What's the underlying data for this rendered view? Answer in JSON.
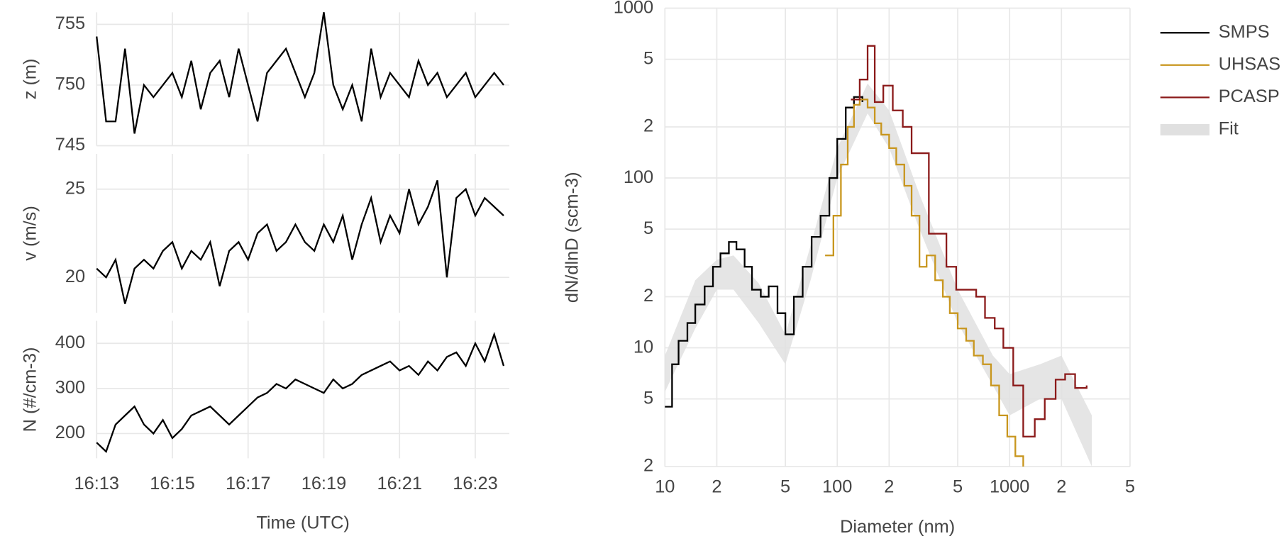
{
  "chart_data": [
    {
      "type": "line",
      "ylabel": "z (m)",
      "color": "#000000",
      "grid": true,
      "x": [
        973,
        973.25,
        973.5,
        973.75,
        974,
        974.25,
        974.5,
        974.75,
        975,
        975.25,
        975.5,
        975.75,
        976,
        976.25,
        976.5,
        976.75,
        977,
        977.25,
        977.5,
        977.75,
        978,
        978.25,
        978.5,
        978.75,
        979,
        979.25,
        979.5,
        979.75,
        980,
        980.25,
        980.5,
        980.75,
        981,
        981.25,
        981.5,
        981.75,
        982,
        982.25,
        982.5,
        982.75,
        983,
        983.25,
        983.5,
        983.75
      ],
      "values": [
        754,
        747,
        747,
        753,
        746,
        750,
        749,
        750,
        751,
        749,
        752,
        748,
        751,
        752,
        749,
        753,
        750,
        747,
        751,
        752,
        753,
        751,
        749,
        751,
        756,
        750,
        748,
        750,
        747,
        753,
        749,
        751,
        750,
        749,
        752,
        750,
        751,
        749,
        750,
        751,
        749,
        750,
        751,
        750
      ],
      "xlim": [
        973,
        983.9
      ],
      "ylim": [
        745,
        756
      ],
      "yticks": [
        745,
        750,
        755
      ]
    },
    {
      "type": "line",
      "ylabel": "v (m/s)",
      "color": "#000000",
      "grid": true,
      "x": [
        973,
        973.25,
        973.5,
        973.75,
        974,
        974.25,
        974.5,
        974.75,
        975,
        975.25,
        975.5,
        975.75,
        976,
        976.25,
        976.5,
        976.75,
        977,
        977.25,
        977.5,
        977.75,
        978,
        978.25,
        978.5,
        978.75,
        979,
        979.25,
        979.5,
        979.75,
        980,
        980.25,
        980.5,
        980.75,
        981,
        981.25,
        981.5,
        981.75,
        982,
        982.25,
        982.5,
        982.75,
        983,
        983.25,
        983.5,
        983.75
      ],
      "values": [
        20.5,
        20,
        21,
        18.5,
        20.5,
        21,
        20.5,
        21.5,
        22,
        20.5,
        21.5,
        21,
        22,
        19.5,
        21.5,
        22,
        21,
        22.5,
        23,
        21.5,
        22,
        23,
        22,
        21.5,
        23,
        22,
        23.5,
        21,
        23,
        24.5,
        22,
        23.5,
        22.5,
        25,
        23,
        24,
        25.5,
        20,
        24.5,
        25,
        23.5,
        24.5,
        24,
        23.5
      ],
      "xlim": [
        973,
        983.9
      ],
      "ylim": [
        18,
        27
      ],
      "yticks": [
        20,
        25
      ]
    },
    {
      "type": "line",
      "ylabel": "N (#/cm-3)",
      "xlabel": "Time (UTC)",
      "color": "#000000",
      "grid": true,
      "x": [
        973,
        973.25,
        973.5,
        973.75,
        974,
        974.25,
        974.5,
        974.75,
        975,
        975.25,
        975.5,
        975.75,
        976,
        976.25,
        976.5,
        976.75,
        977,
        977.25,
        977.5,
        977.75,
        978,
        978.25,
        978.5,
        978.75,
        979,
        979.25,
        979.5,
        979.75,
        980,
        980.25,
        980.5,
        980.75,
        981,
        981.25,
        981.5,
        981.75,
        982,
        982.25,
        982.5,
        982.75,
        983,
        983.25,
        983.5,
        983.75
      ],
      "values": [
        180,
        160,
        220,
        240,
        260,
        220,
        200,
        230,
        190,
        210,
        240,
        250,
        260,
        240,
        220,
        240,
        260,
        280,
        290,
        310,
        300,
        320,
        310,
        300,
        290,
        320,
        300,
        310,
        330,
        340,
        350,
        360,
        340,
        350,
        330,
        360,
        340,
        370,
        380,
        350,
        400,
        360,
        420,
        350
      ],
      "xlim": [
        973,
        983.9
      ],
      "ylim": [
        145,
        450
      ],
      "yticks": [
        200,
        300,
        400
      ],
      "xticks": [
        {
          "value": 973,
          "label": "16:13"
        },
        {
          "value": 975,
          "label": "16:15"
        },
        {
          "value": 977,
          "label": "16:17"
        },
        {
          "value": 979,
          "label": "16:19"
        },
        {
          "value": 981,
          "label": "16:21"
        },
        {
          "value": 983,
          "label": "16:23"
        }
      ]
    },
    {
      "type": "step",
      "xlabel": "Diameter (nm)",
      "ylabel": "dN/dlnD (scm-3)",
      "log_x": true,
      "log_y": true,
      "grid": true,
      "legend": "top-right",
      "xlim": [
        10,
        5000
      ],
      "ylim": [
        2,
        1000
      ],
      "xticks": [
        10,
        {
          "value": 20,
          "label": "2"
        },
        {
          "value": 50,
          "label": "5"
        },
        100,
        {
          "value": 200,
          "label": "2"
        },
        {
          "value": 500,
          "label": "5"
        },
        1000,
        {
          "value": 2000,
          "label": "2"
        },
        {
          "value": 5000,
          "label": "5"
        }
      ],
      "yticks": [
        {
          "value": 2,
          "label": "2"
        },
        {
          "value": 5,
          "label": "5"
        },
        10,
        {
          "value": 20,
          "label": "2"
        },
        {
          "value": 50,
          "label": "5"
        },
        100,
        {
          "value": 200,
          "label": "2"
        },
        {
          "value": 500,
          "label": "5"
        },
        1000
      ],
      "series": [
        {
          "name": "SMPS",
          "color": "#000000",
          "x": [
            10,
            11,
            12,
            13.5,
            15,
            17,
            19,
            21,
            23.5,
            26,
            29,
            32,
            36,
            40,
            45,
            50,
            56,
            63,
            71,
            80,
            90,
            100,
            112,
            125,
            140
          ],
          "values": [
            4.5,
            8,
            11,
            14,
            18,
            23,
            30,
            36,
            42,
            38,
            30,
            22,
            20,
            23,
            16,
            12,
            20,
            30,
            45,
            60,
            100,
            170,
            260,
            300,
            280
          ]
        },
        {
          "name": "UHSAS",
          "color": "#c8961e",
          "x": [
            85,
            95,
            105,
            115,
            125,
            135,
            150,
            165,
            180,
            200,
            220,
            245,
            270,
            300,
            330,
            370,
            410,
            450,
            500,
            560,
            620,
            700,
            780,
            870,
            970,
            1080,
            1200
          ],
          "values": [
            35,
            60,
            120,
            200,
            270,
            290,
            260,
            210,
            180,
            150,
            120,
            90,
            60,
            30,
            35,
            25,
            20,
            16,
            13,
            11,
            9,
            8,
            6,
            4,
            3,
            2.3,
            2
          ]
        },
        {
          "name": "PCASP",
          "color": "#8b1a1a",
          "x": [
            120,
            135,
            150,
            165,
            185,
            210,
            240,
            270,
            300,
            340,
            380,
            430,
            490,
            560,
            640,
            720,
            820,
            920,
            1050,
            1200,
            1400,
            1600,
            1850,
            2100,
            2400,
            2800
          ],
          "values": [
            290,
            380,
            600,
            280,
            350,
            250,
            200,
            140,
            140,
            47,
            47,
            30,
            22,
            22,
            20,
            15,
            13,
            10,
            6,
            3,
            3.8,
            5,
            6.5,
            7,
            5.8,
            6
          ]
        },
        {
          "name": "Fit",
          "color": "#e0e0e0",
          "x": [
            10,
            15,
            20,
            25,
            35,
            50,
            70,
            100,
            150,
            200,
            300,
            500,
            800,
            1000,
            1500,
            2000,
            3000
          ],
          "lower": [
            5.5,
            13,
            22,
            22,
            14,
            8,
            25,
            100,
            240,
            150,
            50,
            14,
            6,
            4,
            5,
            5,
            2
          ],
          "upper": [
            9,
            25,
            33,
            35,
            24,
            12,
            40,
            150,
            360,
            250,
            80,
            22,
            9,
            7,
            8,
            9,
            4
          ]
        }
      ]
    }
  ]
}
